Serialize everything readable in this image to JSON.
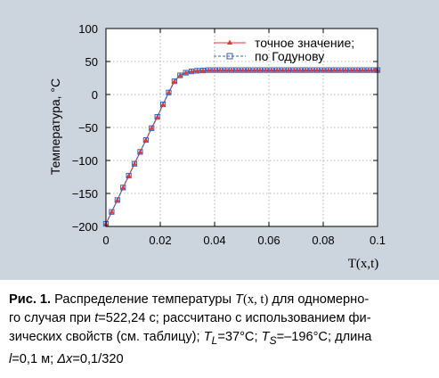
{
  "chart_data": {
    "type": "line",
    "title": "",
    "xlabel": "T(x,t)",
    "ylabel": "Температура, °C",
    "xlim": [
      0,
      0.1
    ],
    "ylim": [
      -200,
      100
    ],
    "xticks": [
      "0",
      "0.02",
      "0.04",
      "0.06",
      "0.08",
      "0.1"
    ],
    "yticks": [
      "100",
      "50",
      "0",
      "−50",
      "−100",
      "−150",
      "−200"
    ],
    "grid": true,
    "legend": "top-right",
    "series": [
      {
        "name": "точное значение;",
        "color": "#e8343c",
        "marker": "triangle",
        "x": [
          0,
          0.0021,
          0.0042,
          0.0063,
          0.0084,
          0.0105,
          0.0126,
          0.0147,
          0.0168,
          0.0189,
          0.021,
          0.0231,
          0.0252,
          0.0273,
          0.0294,
          0.0315,
          0.0336,
          0.0357,
          0.0378,
          0.0399,
          0.042,
          0.0441,
          0.0462,
          0.0483,
          0.0504,
          0.0525,
          0.0546,
          0.0567,
          0.0588,
          0.0609,
          0.063,
          0.0651,
          0.0672,
          0.0693,
          0.0714,
          0.0735,
          0.0756,
          0.0777,
          0.0798,
          0.0819,
          0.084,
          0.0861,
          0.0882,
          0.0903,
          0.0924,
          0.0945,
          0.0966,
          0.0987,
          0.1
        ],
        "y": [
          -196,
          -178,
          -160,
          -141,
          -123,
          -105,
          -87,
          -69,
          -51,
          -34,
          -15,
          3,
          20,
          29,
          33,
          35,
          36,
          36.5,
          37,
          37,
          37,
          37,
          37,
          37,
          37,
          37,
          37,
          37,
          37,
          37,
          37,
          37,
          37,
          37,
          37,
          37,
          37,
          37,
          37,
          37,
          37,
          37,
          37,
          37,
          37,
          37,
          37,
          37,
          37
        ]
      },
      {
        "name": "по Годунову",
        "color": "#3b5fb0",
        "marker": "square",
        "x": [
          0,
          0.0021,
          0.0042,
          0.0063,
          0.0084,
          0.0105,
          0.0126,
          0.0147,
          0.0168,
          0.0189,
          0.021,
          0.0231,
          0.0252,
          0.0273,
          0.0294,
          0.0315,
          0.0336,
          0.0357,
          0.0378,
          0.0399,
          0.042,
          0.0441,
          0.0462,
          0.0483,
          0.0504,
          0.0525,
          0.0546,
          0.0567,
          0.0588,
          0.0609,
          0.063,
          0.0651,
          0.0672,
          0.0693,
          0.0714,
          0.0735,
          0.0756,
          0.0777,
          0.0798,
          0.0819,
          0.084,
          0.0861,
          0.0882,
          0.0903,
          0.0924,
          0.0945,
          0.0966,
          0.0987,
          0.1
        ],
        "y": [
          -196,
          -178,
          -160,
          -141,
          -123,
          -105,
          -87,
          -69,
          -51,
          -34,
          -15,
          3,
          20,
          29,
          33,
          35,
          36,
          36.5,
          37,
          37,
          37,
          37,
          37,
          37,
          37,
          37,
          37,
          37,
          37,
          37,
          37,
          37,
          37,
          37,
          37,
          37,
          37,
          37,
          37,
          37,
          37,
          37,
          37,
          37,
          37,
          37,
          37,
          37,
          37
        ]
      }
    ]
  },
  "caption": {
    "label": "Рис. 1.",
    "line1_a": " Распределение температуры ",
    "line1_b": " для одномерно-",
    "t_sym": "T",
    "t_args": "(x, t)",
    "line2_a": "го случая при ",
    "line2_t": "t",
    "line2_b": "=522,24 с; рассчитано с использованием фи-",
    "line3_a": "зических свойств (см. таблицу); ",
    "tl_sym": "T",
    "tl_sub": "L",
    "tl_val": "=37°C; ",
    "ts_sym": "T",
    "ts_sub": "S",
    "ts_val": "=–196°C; длина",
    "line4_l": "l",
    "line4_a": "=0,1 м; ",
    "line4_dx": "Δx",
    "line4_b": "=0,1/320"
  }
}
